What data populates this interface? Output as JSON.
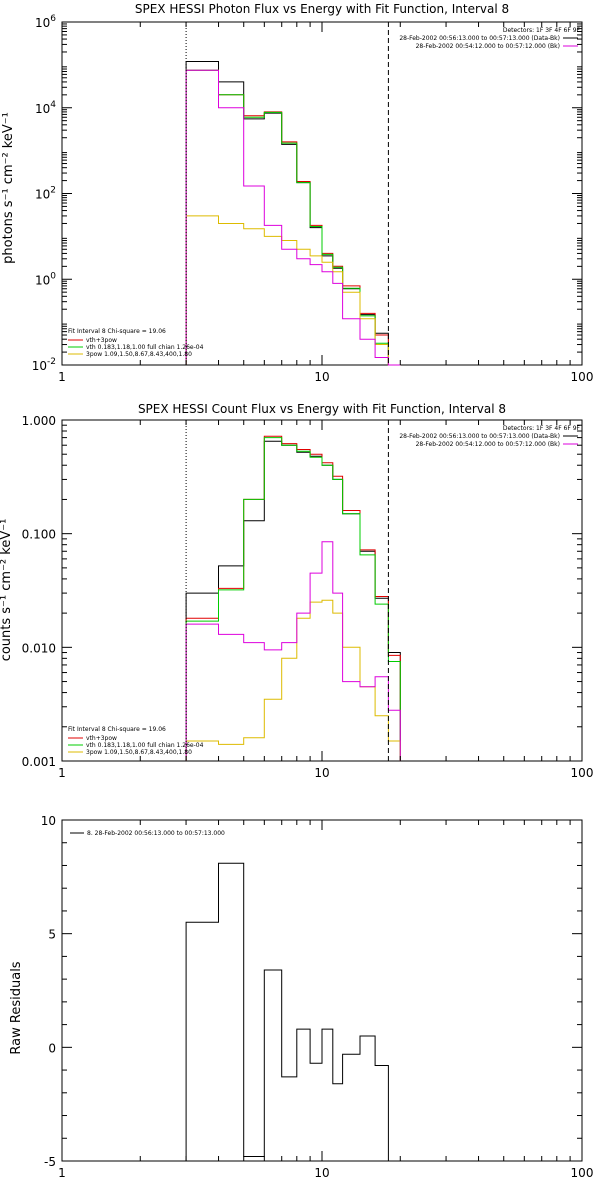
{
  "chart_data": [
    {
      "type": "line",
      "title": "SPEX HESSI Photon Flux vs Energy with Fit Function, Interval 8",
      "ylabel": "photons s⁻¹ cm⁻² keV⁻¹",
      "xlabel": "",
      "xscale": "log",
      "yscale": "log",
      "xlim": [
        1,
        100
      ],
      "ylim": [
        0.01,
        1000000
      ],
      "xticks": [
        {
          "value": 1,
          "label": "1"
        },
        {
          "value": 10,
          "label": "10"
        },
        {
          "value": 100,
          "label": "100"
        }
      ],
      "yticks": [
        {
          "value": 0.01,
          "base": "10",
          "exp": "-2"
        },
        {
          "value": 1,
          "base": "10",
          "exp": "0"
        },
        {
          "value": 100,
          "base": "10",
          "exp": "2"
        },
        {
          "value": 10000,
          "base": "10",
          "exp": "4"
        },
        {
          "value": 1000000,
          "base": "10",
          "exp": "6"
        }
      ],
      "vlines": [
        {
          "x": 3,
          "style": "dotted"
        },
        {
          "x": 18,
          "style": "dashed"
        }
      ],
      "legend_topright": [
        "Detectors: 1F 3F 4F 6F 9F",
        "28-Feb-2002 00:56:13.000 to 00:57:13.000 (Data-Bk)",
        "28-Feb-2002 00:54:12.000 to 00:57:12.000 (Bk)"
      ],
      "legend_bottomleft": [
        "Fit Interval  8    Chi-square = 19.06",
        "vth+3pow",
        "vth 0.183,1.18,1.00  full chian 1.26e-04",
        "3pow 1.09,1.50,8.67,8.43,400,1.80"
      ],
      "grid": false,
      "edges": [
        3,
        4,
        5,
        6,
        7,
        8,
        9,
        10,
        11,
        12,
        14,
        16,
        18,
        20
      ],
      "series": [
        {
          "name": "",
          "color": "#000000",
          "values": [
            120000,
            40000,
            5500,
            7500,
            1400,
            180,
            16,
            3.5,
            1.8,
            0.6,
            0.15,
            0.055,
            0.006
          ]
        },
        {
          "name": "vth+3pow",
          "color": "#e00000",
          "values": [
            75000,
            20000,
            6500,
            8000,
            1600,
            190,
            18,
            4.0,
            2.0,
            0.7,
            0.16,
            0.05,
            0.008
          ]
        },
        {
          "name": "vth 0.183,1.18,1.00  full chian 1.26e-04",
          "color": "#00cc00",
          "values": [
            75000,
            20000,
            6000,
            7800,
            1500,
            180,
            17,
            3.8,
            1.9,
            0.62,
            0.14,
            0.032,
            0.007
          ]
        },
        {
          "name": "3pow 1.09,1.50,8.67,8.43,400,1.80",
          "color": "#ddbb00",
          "values": [
            30,
            20,
            15,
            10,
            8,
            5,
            3.5,
            2.5,
            1.5,
            0.5,
            0.12,
            0.03,
            0.01
          ]
        },
        {
          "name": "",
          "color": "#dd00dd",
          "values": [
            75000,
            10000,
            150,
            18,
            5,
            3,
            2.2,
            1.5,
            0.8,
            0.12,
            0.04,
            0.015,
            0.007
          ]
        }
      ]
    },
    {
      "type": "line",
      "title": "SPEX HESSI Count Flux vs Energy with Fit Function, Interval 8",
      "ylabel": "counts s⁻¹ cm⁻² keV⁻¹",
      "xlabel": "",
      "xscale": "log",
      "yscale": "log",
      "xlim": [
        1,
        100
      ],
      "ylim": [
        0.001,
        1.0
      ],
      "xticks": [
        {
          "value": 1,
          "label": "1"
        },
        {
          "value": 10,
          "label": "10"
        },
        {
          "value": 100,
          "label": "100"
        }
      ],
      "yticks": [
        {
          "value": 0.001,
          "label": "0.001"
        },
        {
          "value": 0.01,
          "label": "0.010"
        },
        {
          "value": 0.1,
          "label": "0.100"
        },
        {
          "value": 1.0,
          "label": "1.000"
        }
      ],
      "vlines": [
        {
          "x": 3,
          "style": "dotted"
        },
        {
          "x": 18,
          "style": "dashed"
        }
      ],
      "legend_topright": [
        "Detectors: 1F 3F 4F 6F 9F",
        "28-Feb-2002 00:56:13.000 to 00:57:13.000 (Data-Bk)",
        "28-Feb-2002 00:54:12.000 to 00:57:12.000 (Bk)"
      ],
      "legend_bottomleft": [
        "Fit Interval  8    Chi-square = 19.06",
        "vth+3pow",
        "vth 0.183,1.18,1.00  full chian 1.26e-04",
        "3pow 1.09,1.50,8.67,8.43,400,1.80"
      ],
      "grid": false,
      "edges": [
        3,
        4,
        5,
        6,
        7,
        8,
        9,
        10,
        11,
        12,
        14,
        16,
        18,
        20
      ],
      "series": [
        {
          "name": "",
          "color": "#000000",
          "values": [
            0.03,
            0.052,
            0.13,
            0.65,
            0.6,
            0.52,
            0.48,
            0.4,
            0.3,
            0.15,
            0.07,
            0.027,
            0.009
          ]
        },
        {
          "name": "vth+3pow",
          "color": "#e00000",
          "values": [
            0.018,
            0.033,
            0.2,
            0.72,
            0.62,
            0.55,
            0.5,
            0.42,
            0.32,
            0.16,
            0.072,
            0.028,
            0.0085
          ]
        },
        {
          "name": "vth 0.183,1.18,1.00  full chian 1.26e-04",
          "color": "#00cc00",
          "values": [
            0.017,
            0.032,
            0.2,
            0.7,
            0.6,
            0.53,
            0.47,
            0.4,
            0.3,
            0.15,
            0.065,
            0.024,
            0.0075
          ]
        },
        {
          "name": "3pow 1.09,1.50,8.67,8.43,400,1.80",
          "color": "#ddbb00",
          "values": [
            0.0015,
            0.0014,
            0.0016,
            0.0035,
            0.008,
            0.018,
            0.025,
            0.026,
            0.02,
            0.01,
            0.0045,
            0.0025,
            0.0015
          ]
        },
        {
          "name": "",
          "color": "#dd00dd",
          "values": [
            0.016,
            0.013,
            0.011,
            0.0095,
            0.011,
            0.02,
            0.045,
            0.085,
            0.03,
            0.005,
            0.0045,
            0.0055,
            0.0028
          ]
        }
      ]
    },
    {
      "type": "line",
      "title": "",
      "ylabel": "Raw Residuals",
      "xlabel": "",
      "xscale": "log",
      "yscale": "linear",
      "xlim": [
        1,
        100
      ],
      "ylim": [
        -5,
        10
      ],
      "xticks": [
        {
          "value": 1,
          "label": "1"
        },
        {
          "value": 10,
          "label": "10"
        },
        {
          "value": 100,
          "label": "100"
        }
      ],
      "yticks": [
        {
          "value": -5,
          "label": "-5"
        },
        {
          "value": 0,
          "label": "0"
        },
        {
          "value": 5,
          "label": "5"
        },
        {
          "value": 10,
          "label": "10"
        }
      ],
      "legend_topleft": [
        "8. 28-Feb-2002 00:56:13.000 to 00:57:13.000"
      ],
      "grid": false,
      "edges": [
        3,
        4,
        5,
        6,
        7,
        8,
        9,
        10,
        11,
        12,
        14,
        16,
        18
      ],
      "series": [
        {
          "name": "8. 28-Feb-2002 00:56:13.000 to 00:57:13.000",
          "color": "#000000",
          "values": [
            5.5,
            8.1,
            -4.8,
            3.4,
            -1.3,
            0.8,
            -0.7,
            0.8,
            -1.6,
            -0.3,
            0.5,
            -0.8
          ]
        }
      ]
    }
  ]
}
